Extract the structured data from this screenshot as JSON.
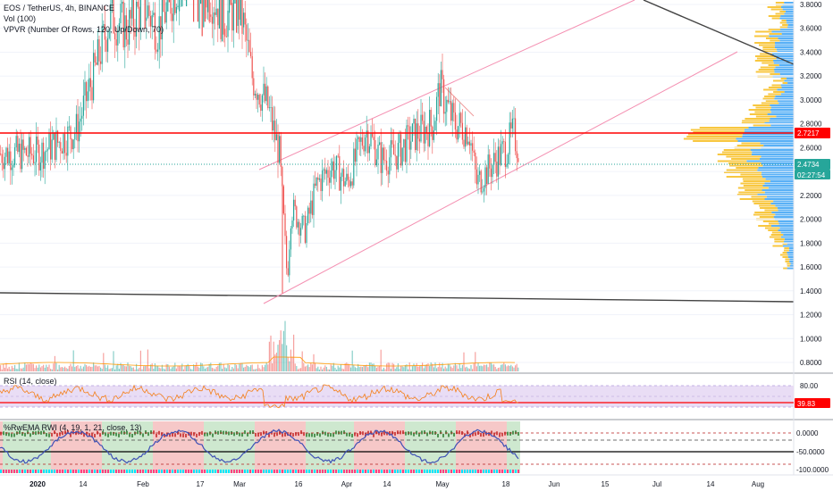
{
  "header": {
    "symbol": "EOS / TetherUS, 4h, BINANCE",
    "volume": "Vol (100)",
    "vpvr": "VPVR (Number Of Rows, 120, Up/Down, 70)",
    "rsi": "RSI (14, close)",
    "rwema": "%RwEMA RWI (4, 19, 1, 21, close, 13)"
  },
  "colors": {
    "up": "#26a69a",
    "down": "#ef5350",
    "accent_red": "#ff0000",
    "cyan": "#26a69a",
    "vpvr_up": "#2196f3",
    "vpvr_down": "#f5b400",
    "rsi_line": "#f57f17",
    "channel": "#f48fb1"
  },
  "badges": {
    "resistance": "2.7217",
    "last_price": "2.4734",
    "countdown": "02:27:54",
    "rsi_value": "39.83"
  },
  "chart_data": [
    {
      "type": "candlestick",
      "title": "EOS / TetherUS, 4h, BINANCE",
      "yaxis_ticks": [
        "3.8000",
        "3.6000",
        "3.4000",
        "3.2000",
        "3.0000",
        "2.8000",
        "2.6000",
        "2.4000",
        "2.2000",
        "2.0000",
        "1.8000",
        "1.6000",
        "1.4000",
        "1.2000",
        "1.0000",
        "0.8000"
      ],
      "ylim": [
        0.7,
        3.85
      ],
      "xaxis_ticks": [
        "2020",
        "14",
        "Feb",
        "17",
        "Mar",
        "16",
        "Apr",
        "14",
        "May",
        "18",
        "Jun",
        "15",
        "Jul",
        "14",
        "Aug"
      ],
      "price_path": [
        {
          "x": "Jan 01",
          "y": 2.55
        },
        {
          "x": "Jan 07",
          "y": 2.65
        },
        {
          "x": "Jan 12",
          "y": 2.75
        },
        {
          "x": "Jan 18",
          "y": 3.3
        },
        {
          "x": "Jan 22",
          "y": 3.7
        },
        {
          "x": "Jan 27",
          "y": 3.6
        },
        {
          "x": "Feb 01",
          "y": 3.8
        },
        {
          "x": "Feb 05",
          "y": 3.6
        },
        {
          "x": "Feb 14",
          "y": 4.2
        },
        {
          "x": "Feb 20",
          "y": 3.9
        },
        {
          "x": "Feb 25",
          "y": 3.7
        },
        {
          "x": "Mar 01",
          "y": 3.8
        },
        {
          "x": "Mar 04",
          "y": 3.2
        },
        {
          "x": "Mar 08",
          "y": 2.95
        },
        {
          "x": "Mar 11",
          "y": 2.55
        },
        {
          "x": "Mar 13",
          "y": 1.5
        },
        {
          "x": "Mar 14",
          "y": 2.1
        },
        {
          "x": "Mar 18",
          "y": 1.9
        },
        {
          "x": "Mar 22",
          "y": 2.3
        },
        {
          "x": "Mar 27",
          "y": 2.45
        },
        {
          "x": "Apr 01",
          "y": 2.3
        },
        {
          "x": "Apr 05",
          "y": 2.6
        },
        {
          "x": "Apr 07",
          "y": 2.75
        },
        {
          "x": "Apr 12",
          "y": 2.5
        },
        {
          "x": "Apr 17",
          "y": 2.55
        },
        {
          "x": "Apr 22",
          "y": 2.7
        },
        {
          "x": "Apr 28",
          "y": 2.8
        },
        {
          "x": "Apr 30",
          "y": 3.1
        },
        {
          "x": "May 04",
          "y": 2.8
        },
        {
          "x": "May 08",
          "y": 2.75
        },
        {
          "x": "May 10",
          "y": 2.3
        },
        {
          "x": "May 14",
          "y": 2.45
        },
        {
          "x": "May 18",
          "y": 2.6
        },
        {
          "x": "May 20",
          "y": 2.72
        },
        {
          "x": "May 23",
          "y": 2.47
        }
      ],
      "resistance": 2.7217,
      "last_price": 2.4734
    },
    {
      "type": "bar",
      "title": "Vol (100)",
      "note": "volume histogram beneath price"
    },
    {
      "type": "line",
      "title": "RSI (14, close)",
      "yaxis_ticks": [
        "80.00",
        "39.83"
      ],
      "ylim": [
        20,
        90
      ],
      "last_value": 39.83,
      "band": [
        30,
        70
      ]
    },
    {
      "type": "area",
      "title": "%RwEMA RWI (4, 19, 1, 21, close, 13)",
      "yaxis_ticks": [
        "0.0000",
        "-50.0000",
        "-100.0000"
      ],
      "ylim": [
        -110,
        10
      ]
    }
  ]
}
